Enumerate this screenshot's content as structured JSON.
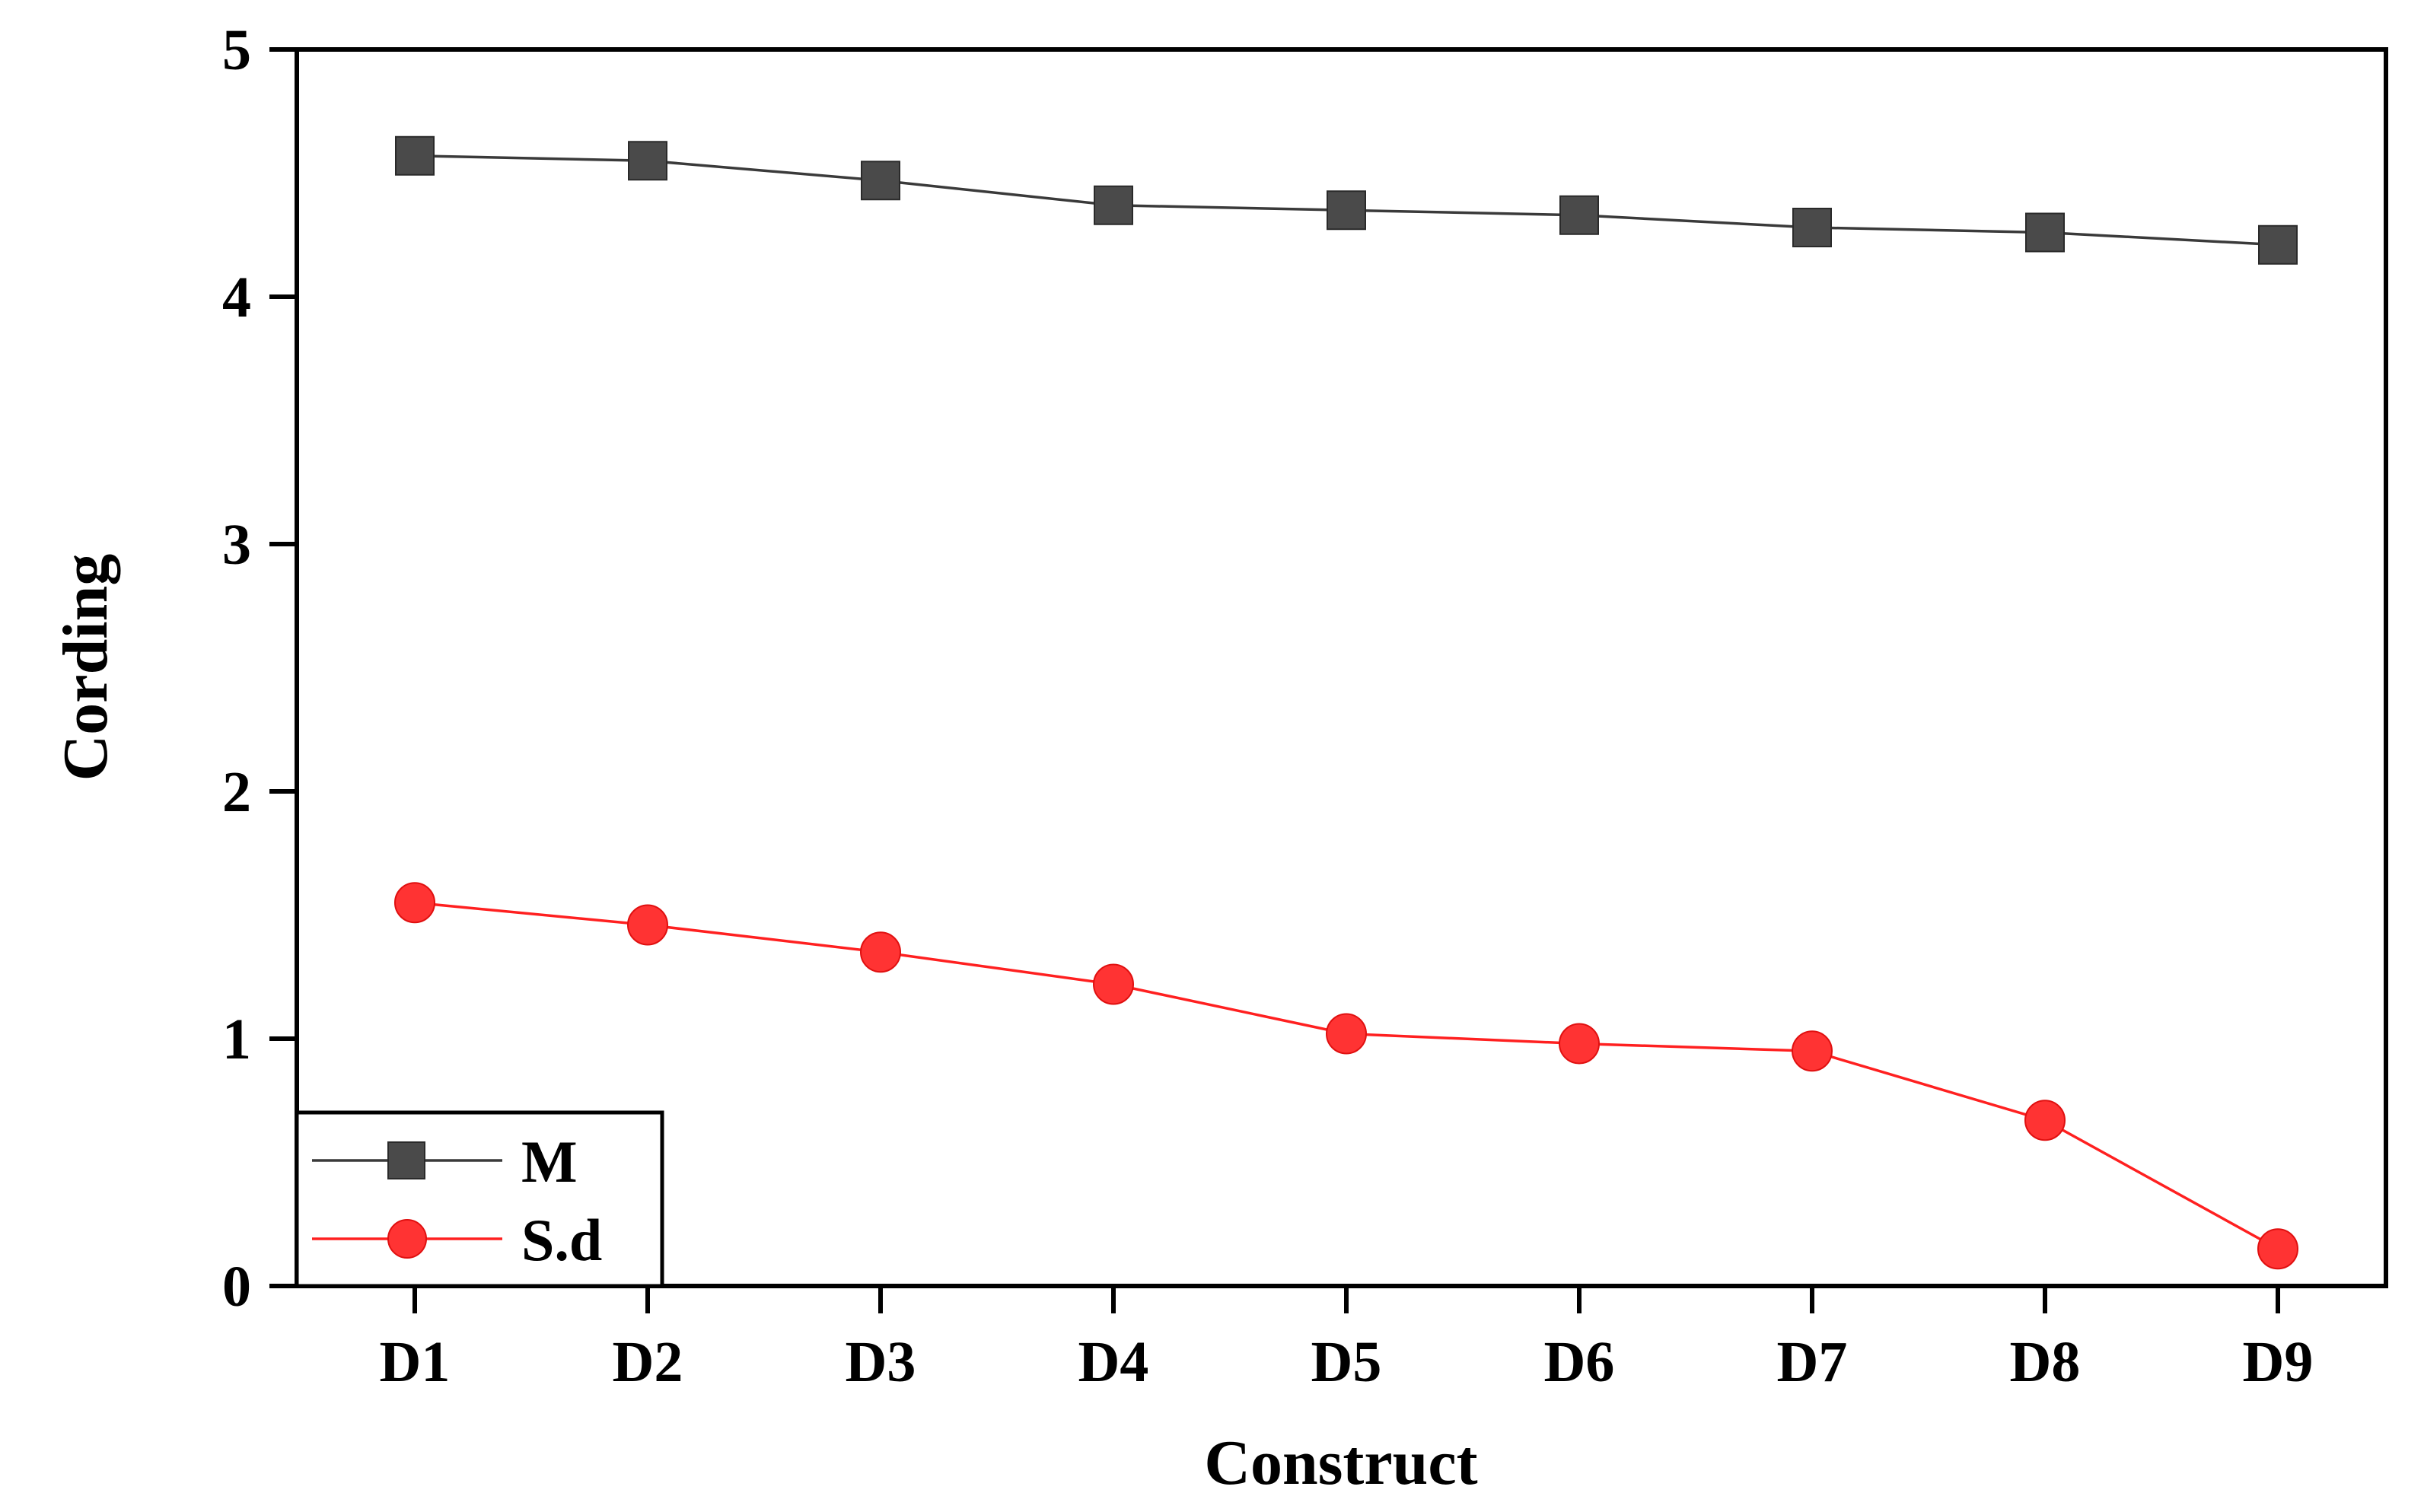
{
  "chart_data": {
    "type": "line",
    "title": "",
    "xlabel": "Construct",
    "ylabel": "Cording",
    "categories": [
      "D1",
      "D2",
      "D3",
      "D4",
      "D5",
      "D6",
      "D7",
      "D8",
      "D9"
    ],
    "yticks": [
      "0",
      "1",
      "2",
      "3",
      "4",
      "5"
    ],
    "ylim": [
      0,
      5
    ],
    "grid": false,
    "legend_position": "bottom-left",
    "series": [
      {
        "name": "M",
        "marker": "square",
        "color": "#4a4a4a",
        "line_color": "#3a3a3a",
        "values": [
          4.57,
          4.55,
          4.47,
          4.37,
          4.35,
          4.33,
          4.28,
          4.26,
          4.21
        ]
      },
      {
        "name": "S.d",
        "marker": "circle",
        "color": "#ff3333",
        "line_color": "#ff2020",
        "values": [
          1.55,
          1.46,
          1.35,
          1.22,
          1.02,
          0.98,
          0.95,
          0.67,
          0.15
        ]
      }
    ]
  }
}
